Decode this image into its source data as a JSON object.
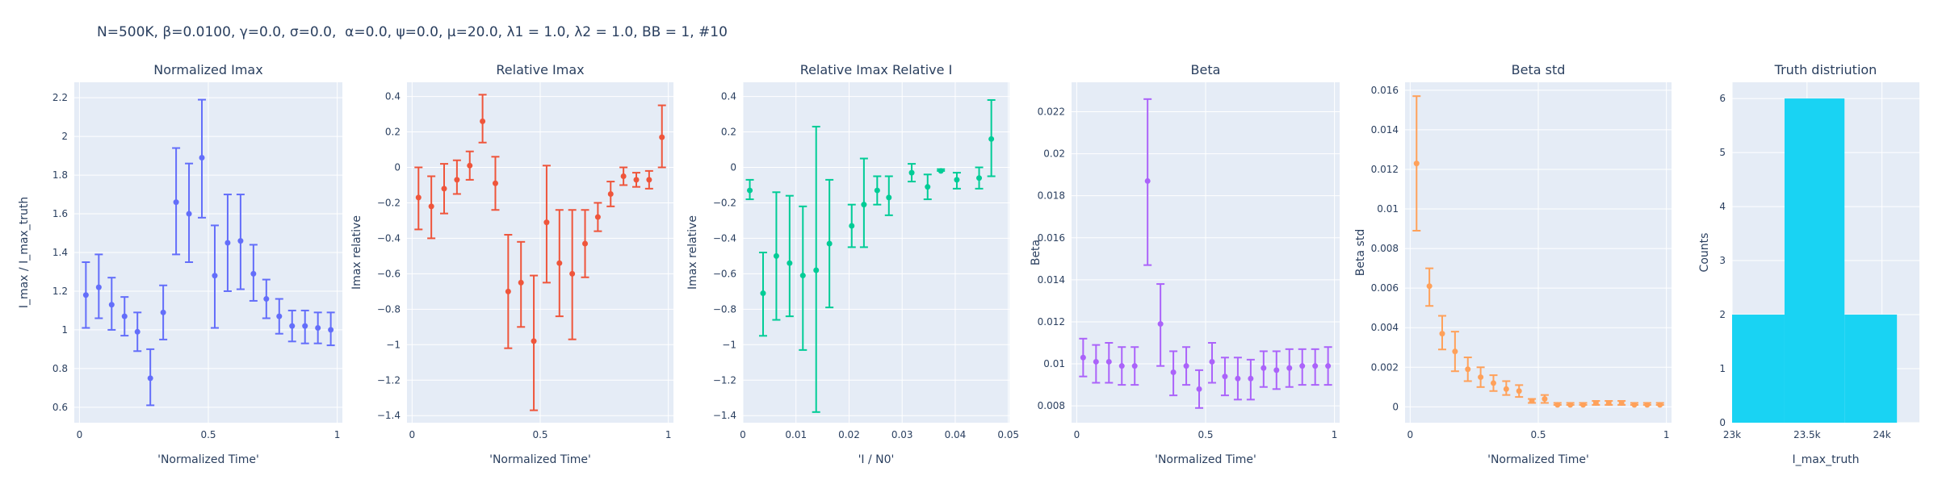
{
  "figure_title": "N=500K, β=0.0100, γ=0.0, σ=0.0,  α=0.0, ψ=0.0, μ=20.0, λ1 = 1.0, λ2 = 1.0, BB = 1, #10",
  "colors": {
    "background": "#e5ecf6",
    "grid": "#ffffff",
    "text": "#2a3f5f"
  },
  "chart_data": [
    {
      "type": "scatter",
      "title": "Normalized Imax",
      "xlabel": "'Normalized Time'",
      "ylabel": "I_max / I_max_truth",
      "xlim": [
        -0.02,
        1.02
      ],
      "ylim": [
        0.52,
        2.28
      ],
      "xticks": [
        0,
        0.5,
        1
      ],
      "xticklabels": [
        "0",
        "0.5",
        "1"
      ],
      "yticks": [
        0.6,
        0.8,
        1,
        1.2,
        1.4,
        1.6,
        1.8,
        2,
        2.2
      ],
      "yticklabels": [
        "0.6",
        "0.8",
        "1",
        "1.2",
        "1.4",
        "1.6",
        "1.8",
        "2",
        "2.2"
      ],
      "color": "#636efa",
      "x": [
        0.025,
        0.075,
        0.125,
        0.175,
        0.225,
        0.275,
        0.325,
        0.375,
        0.425,
        0.475,
        0.525,
        0.575,
        0.625,
        0.675,
        0.725,
        0.775,
        0.825,
        0.875,
        0.925,
        0.975
      ],
      "y": [
        1.18,
        1.22,
        1.13,
        1.07,
        0.99,
        0.75,
        1.09,
        1.66,
        1.6,
        1.89,
        1.28,
        1.45,
        1.46,
        1.29,
        1.16,
        1.07,
        1.02,
        1.02,
        1.01,
        1.0
      ],
      "err_low": [
        1.01,
        1.06,
        1.0,
        0.97,
        0.89,
        0.61,
        0.95,
        1.39,
        1.35,
        1.58,
        1.01,
        1.2,
        1.21,
        1.15,
        1.06,
        0.98,
        0.94,
        0.93,
        0.93,
        0.92
      ],
      "err_high": [
        1.35,
        1.39,
        1.27,
        1.17,
        1.09,
        0.9,
        1.23,
        1.94,
        1.86,
        2.19,
        1.54,
        1.7,
        1.7,
        1.44,
        1.26,
        1.16,
        1.1,
        1.1,
        1.09,
        1.09
      ]
    },
    {
      "type": "scatter",
      "title": "Relative Imax",
      "xlabel": "'Normalized Time'",
      "ylabel": "Imax relative",
      "xlim": [
        -0.02,
        1.02
      ],
      "ylim": [
        -1.44,
        0.48
      ],
      "xticks": [
        0,
        0.5,
        1
      ],
      "xticklabels": [
        "0",
        "0.5",
        "1"
      ],
      "yticks": [
        -1.4,
        -1.2,
        -1,
        -0.8,
        -0.6,
        -0.4,
        -0.2,
        0,
        0.2,
        0.4
      ],
      "yticklabels": [
        "−1.4",
        "−1.2",
        "−1",
        "−0.8",
        "−0.6",
        "−0.4",
        "−0.2",
        "0",
        "0.2",
        "0.4"
      ],
      "color": "#ef553b",
      "x": [
        0.025,
        0.075,
        0.125,
        0.175,
        0.225,
        0.275,
        0.325,
        0.375,
        0.425,
        0.475,
        0.525,
        0.575,
        0.625,
        0.675,
        0.725,
        0.775,
        0.825,
        0.875,
        0.925,
        0.975
      ],
      "y": [
        -0.17,
        -0.22,
        -0.12,
        -0.07,
        0.01,
        0.26,
        -0.09,
        -0.7,
        -0.65,
        -0.98,
        -0.31,
        -0.54,
        -0.6,
        -0.43,
        -0.28,
        -0.15,
        -0.05,
        -0.07,
        -0.07,
        0.17
      ],
      "err_low": [
        -0.35,
        -0.4,
        -0.26,
        -0.15,
        -0.07,
        0.14,
        -0.24,
        -1.02,
        -0.9,
        -1.37,
        -0.65,
        -0.84,
        -0.97,
        -0.62,
        -0.36,
        -0.22,
        -0.1,
        -0.11,
        -0.12,
        0.0
      ],
      "err_high": [
        0.0,
        -0.05,
        0.02,
        0.04,
        0.09,
        0.41,
        0.06,
        -0.38,
        -0.42,
        -0.61,
        0.01,
        -0.24,
        -0.24,
        -0.24,
        -0.2,
        -0.08,
        0.0,
        -0.03,
        -0.02,
        0.35
      ]
    },
    {
      "type": "scatter",
      "title": "Relative Imax Relative I",
      "xlabel": "'I / N0'",
      "ylabel": "Imax relative",
      "xlim": [
        0.0,
        0.0502
      ],
      "ylim": [
        -1.44,
        0.48
      ],
      "xticks": [
        0,
        0.01,
        0.02,
        0.03,
        0.04,
        0.05
      ],
      "xticklabels": [
        "0",
        "0.01",
        "0.02",
        "0.03",
        "0.04",
        "0.05"
      ],
      "yticks": [
        -1.4,
        -1.2,
        -1,
        -0.8,
        -0.6,
        -0.4,
        -0.2,
        0,
        0.2,
        0.4
      ],
      "yticklabels": [
        "−1.4",
        "−1.2",
        "−1",
        "−0.8",
        "−0.6",
        "−0.4",
        "−0.2",
        "0",
        "0.2",
        "0.4"
      ],
      "color": "#00cc96",
      "x": [
        0.0013,
        0.0038,
        0.0063,
        0.0088,
        0.0113,
        0.0138,
        0.0163,
        0.0205,
        0.0228,
        0.0253,
        0.0275,
        0.0318,
        0.0348,
        0.0373,
        0.0403,
        0.0445,
        0.0468
      ],
      "y": [
        -0.13,
        -0.71,
        -0.5,
        -0.54,
        -0.61,
        -0.58,
        -0.43,
        -0.33,
        -0.21,
        -0.13,
        -0.17,
        -0.03,
        -0.11,
        -0.02,
        -0.07,
        -0.06,
        0.16
      ],
      "err_low": [
        -0.18,
        -0.95,
        -0.86,
        -0.84,
        -1.03,
        -1.38,
        -0.79,
        -0.45,
        -0.45,
        -0.21,
        -0.27,
        -0.08,
        -0.18,
        -0.02,
        -0.12,
        -0.12,
        -0.05
      ],
      "err_high": [
        -0.07,
        -0.48,
        -0.14,
        -0.16,
        -0.22,
        0.23,
        -0.07,
        -0.21,
        0.05,
        -0.05,
        -0.05,
        0.02,
        -0.04,
        -0.01,
        -0.03,
        0.0,
        0.38
      ]
    },
    {
      "type": "scatter",
      "title": "Beta",
      "xlabel": "'Normalized Time'",
      "ylabel": "Beta",
      "xlim": [
        -0.02,
        1.02
      ],
      "ylim": [
        0.0072,
        0.0234
      ],
      "xticks": [
        0,
        0.5,
        1
      ],
      "xticklabels": [
        "0",
        "0.5",
        "1"
      ],
      "yticks": [
        0.008,
        0.01,
        0.012,
        0.014,
        0.016,
        0.018,
        0.02,
        0.022
      ],
      "yticklabels": [
        "0.008",
        "0.01",
        "0.012",
        "0.014",
        "0.016",
        "0.018",
        "0.02",
        "0.022"
      ],
      "color": "#ab63fa",
      "x": [
        0.025,
        0.075,
        0.125,
        0.175,
        0.225,
        0.275,
        0.325,
        0.375,
        0.425,
        0.475,
        0.525,
        0.575,
        0.625,
        0.675,
        0.725,
        0.775,
        0.825,
        0.875,
        0.925,
        0.975
      ],
      "y": [
        0.0103,
        0.0101,
        0.0101,
        0.0099,
        0.0099,
        0.0187,
        0.0119,
        0.0096,
        0.0099,
        0.0088,
        0.0101,
        0.0094,
        0.0093,
        0.0093,
        0.0098,
        0.0097,
        0.0098,
        0.0099,
        0.0099,
        0.0099
      ],
      "err_low": [
        0.0094,
        0.0091,
        0.0091,
        0.009,
        0.009,
        0.0147,
        0.0099,
        0.0085,
        0.009,
        0.0079,
        0.0091,
        0.0085,
        0.0083,
        0.0083,
        0.0089,
        0.0088,
        0.0089,
        0.009,
        0.009,
        0.009
      ],
      "err_high": [
        0.0112,
        0.0109,
        0.011,
        0.0108,
        0.0108,
        0.0226,
        0.0138,
        0.0106,
        0.0108,
        0.0097,
        0.011,
        0.0103,
        0.0103,
        0.0102,
        0.0106,
        0.0106,
        0.0107,
        0.0107,
        0.0107,
        0.0108
      ]
    },
    {
      "type": "scatter",
      "title": "Beta std",
      "xlabel": "'Normalized Time'",
      "ylabel": "Beta std",
      "xlim": [
        -0.02,
        1.02
      ],
      "ylim": [
        -0.0008,
        0.0164
      ],
      "xticks": [
        0,
        0.5,
        1
      ],
      "xticklabels": [
        "0",
        "0.5",
        "1"
      ],
      "yticks": [
        0,
        0.002,
        0.004,
        0.006,
        0.008,
        0.01,
        0.012,
        0.014,
        0.016
      ],
      "yticklabels": [
        "0",
        "0.002",
        "0.004",
        "0.006",
        "0.008",
        "0.01",
        "0.012",
        "0.014",
        "0.016"
      ],
      "color": "#ffa15a",
      "x": [
        0.025,
        0.075,
        0.125,
        0.175,
        0.225,
        0.275,
        0.325,
        0.375,
        0.425,
        0.475,
        0.525,
        0.575,
        0.625,
        0.675,
        0.725,
        0.775,
        0.825,
        0.875,
        0.925,
        0.975
      ],
      "y": [
        0.0123,
        0.0061,
        0.0037,
        0.0028,
        0.0019,
        0.0015,
        0.0012,
        0.0009,
        0.0008,
        0.0003,
        0.0004,
        0.0001,
        0.0001,
        0.0001,
        0.0002,
        0.0002,
        0.0002,
        0.0001,
        0.0001,
        0.0001
      ],
      "err_low": [
        0.0089,
        0.0051,
        0.0029,
        0.0018,
        0.0013,
        0.001,
        0.0008,
        0.0006,
        0.0005,
        0.0002,
        0.0002,
        0.0001,
        0.0001,
        0.0001,
        0.0001,
        0.0001,
        0.0001,
        0.0001,
        0.0001,
        0.0001
      ],
      "err_high": [
        0.0157,
        0.007,
        0.0046,
        0.0038,
        0.0025,
        0.002,
        0.0016,
        0.0013,
        0.0011,
        0.0004,
        0.0006,
        0.0002,
        0.0002,
        0.0002,
        0.0003,
        0.0003,
        0.0003,
        0.0002,
        0.0002,
        0.0002
      ]
    },
    {
      "type": "bar",
      "title": "Truth distriution",
      "xlabel": "I_max_truth",
      "ylabel": "Counts",
      "xlim": [
        23000,
        24250
      ],
      "ylim": [
        0,
        6.3
      ],
      "xticks": [
        23000,
        23500,
        24000
      ],
      "xticklabels": [
        "23k",
        "23.5k",
        "24k"
      ],
      "yticks": [
        0,
        1,
        2,
        3,
        4,
        5,
        6
      ],
      "yticklabels": [
        "0",
        "1",
        "2",
        "3",
        "4",
        "5",
        "6"
      ],
      "color": "#19d3f3",
      "bins": [
        [
          23000,
          23350
        ],
        [
          23350,
          23750
        ],
        [
          23750,
          24100
        ]
      ],
      "values": [
        2,
        6,
        2
      ]
    }
  ]
}
